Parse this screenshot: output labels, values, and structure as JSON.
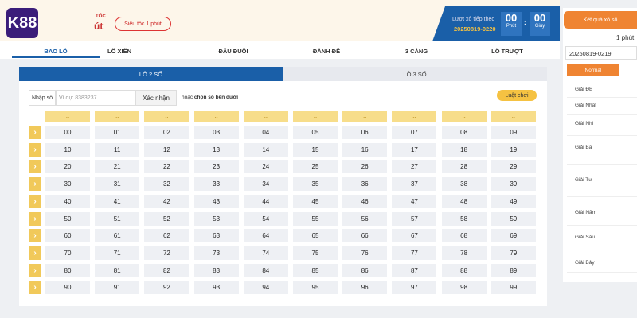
{
  "header": {
    "logo": {
      "brand": "K88",
      "sub1": "TỐC",
      "sub2": "út"
    },
    "game_select": "Siêu tốc 1 phút",
    "next_draw": {
      "label": "Lượt xổ tiếp theo",
      "id": "20250819-0220",
      "minutes": "00",
      "minutes_label": "Phút",
      "seconds": "00",
      "seconds_label": "Giây"
    }
  },
  "tabs": [
    "BAO LÔ",
    "LÔ XIÊN",
    "ĐẦU ĐUÔI",
    "ĐÁNH ĐỀ",
    "3 CÀNG",
    "LÔ TRƯỢT"
  ],
  "subtabs": [
    "LÔ 2 SỐ",
    "LÔ 3 SỐ"
  ],
  "input": {
    "label": "Nhập số",
    "placeholder": "Ví dụ: 8383237",
    "button": "Xác nhận",
    "hint_prefix": "hoặc",
    "hint_bold": "chọn số bên dưới"
  },
  "rules_button": "Luật chơi",
  "grid": {
    "rows": [
      [
        "00",
        "01",
        "02",
        "03",
        "04",
        "05",
        "06",
        "07",
        "08",
        "09"
      ],
      [
        "10",
        "11",
        "12",
        "13",
        "14",
        "15",
        "16",
        "17",
        "18",
        "19"
      ],
      [
        "20",
        "21",
        "22",
        "23",
        "24",
        "25",
        "26",
        "27",
        "28",
        "29"
      ],
      [
        "30",
        "31",
        "32",
        "33",
        "34",
        "35",
        "36",
        "37",
        "38",
        "39"
      ],
      [
        "40",
        "41",
        "42",
        "43",
        "44",
        "45",
        "46",
        "47",
        "48",
        "49"
      ],
      [
        "50",
        "51",
        "52",
        "53",
        "54",
        "55",
        "56",
        "57",
        "58",
        "59"
      ],
      [
        "60",
        "61",
        "62",
        "63",
        "64",
        "65",
        "66",
        "67",
        "68",
        "69"
      ],
      [
        "70",
        "71",
        "72",
        "73",
        "74",
        "75",
        "76",
        "77",
        "78",
        "79"
      ],
      [
        "80",
        "81",
        "82",
        "83",
        "84",
        "85",
        "86",
        "87",
        "88",
        "89"
      ],
      [
        "90",
        "91",
        "92",
        "93",
        "94",
        "95",
        "96",
        "97",
        "98",
        "99"
      ]
    ]
  },
  "results": {
    "button": "Kết quả xổ số",
    "period": "1 phút",
    "draw_id": "20250819-0219",
    "tab": "Normal",
    "prizes": [
      "Giải ĐB",
      "Giải Nhất",
      "Giải Nhì",
      "Giải Ba",
      "Giải Tư",
      "Giải Năm",
      "Giải Sáu",
      "Giải Bảy"
    ]
  }
}
